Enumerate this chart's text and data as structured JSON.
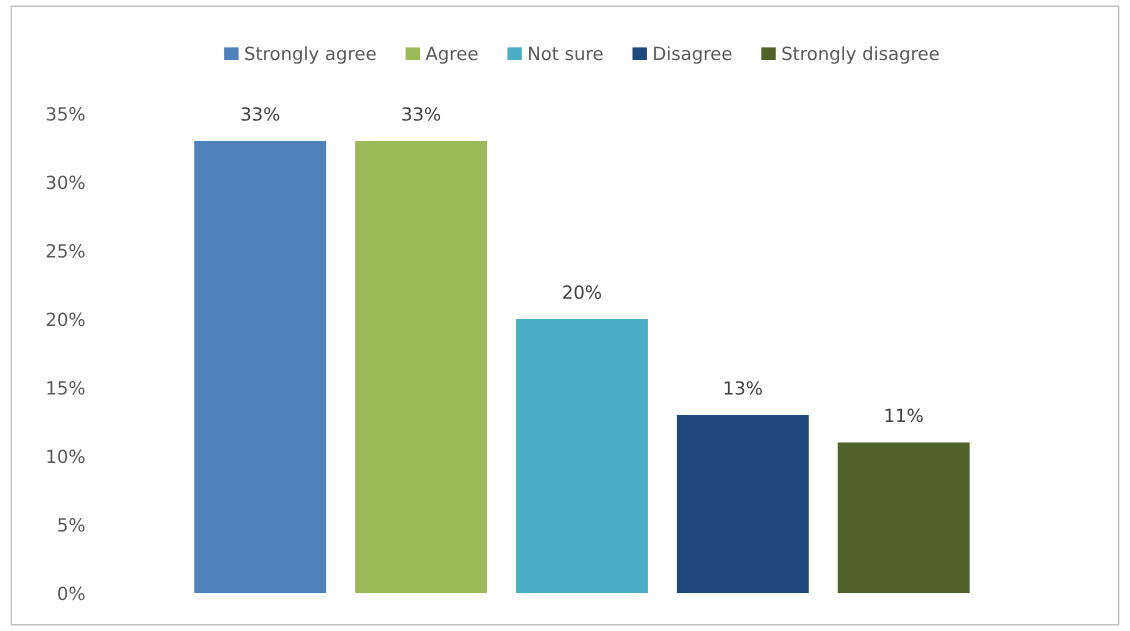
{
  "chart_data": {
    "type": "bar",
    "categories": [
      null
    ],
    "series": [
      {
        "name": "Strongly agree",
        "color": "#4f81bd",
        "values": [
          33
        ],
        "value_labels": [
          "33%"
        ]
      },
      {
        "name": "Agree",
        "color": "#9bbb59",
        "values": [
          33
        ],
        "value_labels": [
          "33%"
        ]
      },
      {
        "name": "Not sure",
        "color": "#4bacc6",
        "values": [
          20
        ],
        "value_labels": [
          "20%"
        ]
      },
      {
        "name": "Disagree",
        "color": "#1f497d",
        "values": [
          13
        ],
        "value_labels": [
          "13%"
        ]
      },
      {
        "name": "Strongly disagree",
        "color": "#4f6228",
        "values": [
          11
        ],
        "value_labels": [
          "11%"
        ]
      }
    ],
    "ylim": [
      0,
      35
    ],
    "yticks": [
      {
        "value": 0,
        "label": "0%"
      },
      {
        "value": 5,
        "label": "5%"
      },
      {
        "value": 10,
        "label": "10%"
      },
      {
        "value": 15,
        "label": "15%"
      },
      {
        "value": 20,
        "label": "20%"
      },
      {
        "value": 25,
        "label": "25%"
      },
      {
        "value": 30,
        "label": "30%"
      },
      {
        "value": 35,
        "label": "35%"
      }
    ],
    "grid": false,
    "legend": "top"
  }
}
